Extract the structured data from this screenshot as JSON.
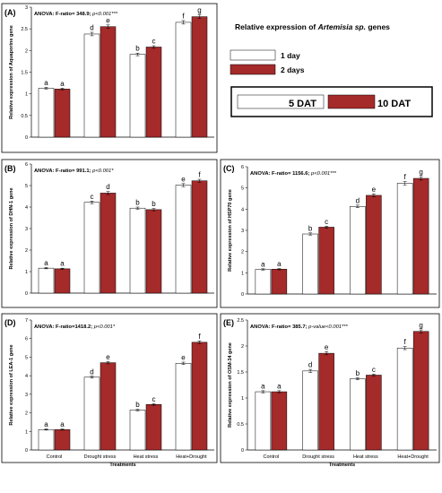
{
  "legend": {
    "title_prefix": "Relative expression of ",
    "title_italic": "Artemisia sp.",
    "title_suffix": " genes",
    "series_labels": [
      "1 day",
      "2 days"
    ],
    "dat_labels": [
      "5 DAT",
      "10 DAT"
    ]
  },
  "colors": {
    "day1": "#ffffff",
    "day2": "#a52a2a"
  },
  "chart_data": [
    {
      "type": "bar",
      "panel": "(A)",
      "anova_bold": "ANOVA: F-ratio= 348.9; ",
      "anova_ital": "p<0.001***",
      "ylabel": "Relative expression of Aquaporine gene",
      "xlabel": "",
      "categories": [
        "",
        "",
        "",
        ""
      ],
      "ylim": [
        0,
        3
      ],
      "yticks": [
        "0",
        "0.5",
        "1",
        "1.5",
        "2",
        "2.5",
        "3"
      ],
      "series": [
        {
          "name": "1 day",
          "values": [
            1.13,
            2.38,
            1.91,
            2.65
          ],
          "errors": [
            0.02,
            0.04,
            0.03,
            0.04
          ],
          "letters": [
            "a",
            "d",
            "b",
            "f"
          ]
        },
        {
          "name": "2 days",
          "values": [
            1.11,
            2.55,
            2.08,
            2.78
          ],
          "errors": [
            0.02,
            0.04,
            0.03,
            0.04
          ],
          "letters": [
            "a",
            "e",
            "c",
            "g"
          ]
        }
      ]
    },
    {
      "type": "bar",
      "panel": "(B)",
      "anova_bold": "ANOVA: F-ratio= 991.1; ",
      "anova_ital": "p<0.001*",
      "ylabel": "Relative expression of DHN-1 gene",
      "xlabel": "",
      "categories": [
        "",
        "",
        "",
        ""
      ],
      "ylim": [
        0,
        6
      ],
      "yticks": [
        "0",
        "1",
        "2",
        "3",
        "4",
        "5",
        "6"
      ],
      "series": [
        {
          "name": "1 day",
          "values": [
            1.16,
            4.22,
            3.95,
            5.02
          ],
          "errors": [
            0.03,
            0.06,
            0.05,
            0.07
          ],
          "letters": [
            "a",
            "c",
            "b",
            "e"
          ]
        },
        {
          "name": "2 days",
          "values": [
            1.13,
            4.65,
            3.88,
            5.22
          ],
          "errors": [
            0.03,
            0.07,
            0.05,
            0.07
          ],
          "letters": [
            "a",
            "d",
            "b",
            "f"
          ]
        }
      ]
    },
    {
      "type": "bar",
      "panel": "(C)",
      "anova_bold": "ANOVA: F-ratio= 1156.6; ",
      "anova_ital": "p<0.001***",
      "ylabel": "Relative expression of HSP70 gene",
      "xlabel": "",
      "categories": [
        "",
        "",
        "",
        ""
      ],
      "ylim": [
        0,
        6
      ],
      "yticks": [
        "0",
        "1",
        "2",
        "3",
        "4",
        "5",
        "6"
      ],
      "series": [
        {
          "name": "1 day",
          "values": [
            1.16,
            2.83,
            4.13,
            5.22
          ],
          "errors": [
            0.03,
            0.05,
            0.06,
            0.08
          ],
          "letters": [
            "a",
            "b",
            "d",
            "f"
          ]
        },
        {
          "name": "2 days",
          "values": [
            1.17,
            3.15,
            4.65,
            5.45
          ],
          "errors": [
            0.03,
            0.05,
            0.07,
            0.08
          ],
          "letters": [
            "a",
            "c",
            "e",
            "g"
          ]
        }
      ]
    },
    {
      "type": "bar",
      "panel": "(D)",
      "anova_bold": "ANOVA: F-ratio=1418.2; ",
      "anova_ital": "p<0.001*",
      "ylabel": "Relative expression of LEA-1 gene",
      "xlabel": "Treatments",
      "categories": [
        "Control",
        "Drought stress",
        "Heat stress",
        "Heat+Drought"
      ],
      "ylim": [
        0,
        7
      ],
      "yticks": [
        "0",
        "1",
        "2",
        "3",
        "4",
        "5",
        "6",
        "7"
      ],
      "series": [
        {
          "name": "1 day",
          "values": [
            1.1,
            3.92,
            2.15,
            4.67
          ],
          "errors": [
            0.03,
            0.05,
            0.04,
            0.06
          ],
          "letters": [
            "a",
            "d",
            "b",
            "e"
          ]
        },
        {
          "name": "2 days",
          "values": [
            1.1,
            4.7,
            2.45,
            5.8
          ],
          "errors": [
            0.03,
            0.06,
            0.04,
            0.07
          ],
          "letters": [
            "a",
            "e",
            "c",
            "f"
          ]
        }
      ]
    },
    {
      "type": "bar",
      "panel": "(E)",
      "anova_bold": "ANOVA: F-ratio= 385.7; ",
      "anova_ital": "p-value<0.001***",
      "ylabel": "Relative expression of OSM-34 gene",
      "xlabel": "Treatments",
      "categories": [
        "Control",
        "Drought stress",
        "Heat stress",
        "Heat+Drought"
      ],
      "ylim": [
        0,
        2.5
      ],
      "yticks": [
        "0",
        "0.5",
        "1",
        "1.5",
        "2",
        "2.5"
      ],
      "series": [
        {
          "name": "1 day",
          "values": [
            1.12,
            1.52,
            1.37,
            1.96
          ],
          "errors": [
            0.02,
            0.03,
            0.02,
            0.03
          ],
          "letters": [
            "a",
            "d",
            "b",
            "f"
          ]
        },
        {
          "name": "2 days",
          "values": [
            1.12,
            1.86,
            1.44,
            2.28
          ],
          "errors": [
            0.02,
            0.03,
            0.02,
            0.03
          ],
          "letters": [
            "a",
            "e",
            "c",
            "g"
          ]
        }
      ]
    }
  ]
}
